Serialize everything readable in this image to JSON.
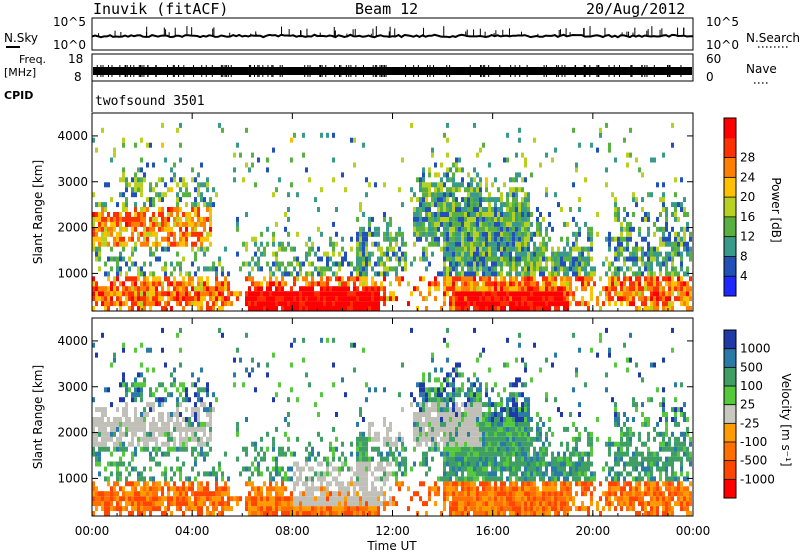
{
  "header": {
    "station": "Inuvik (fitACF)",
    "beam": "Beam 12",
    "date": "20/Aug/2012"
  },
  "status_panels": {
    "nsky_label": "N.Sky",
    "nsky_ticks": [
      "10^5",
      "10^0"
    ],
    "nsearch_label": "N.Search",
    "freq_label_top": "Freq.",
    "freq_label_unit": "[MHz]",
    "freq_ticks": [
      "18",
      "8"
    ],
    "nave_ticks": [
      "60",
      "0"
    ],
    "nave_label": "Nave",
    "cpid_label": "CPID",
    "cpid_value": "twofsound 3501"
  },
  "chart_data": [
    {
      "type": "heatmap",
      "name": "power",
      "ylabel": "Slant Range [km]",
      "xlabel": "",
      "y_ticks": [
        1000,
        2000,
        3000,
        4000
      ],
      "ylim": [
        180,
        4500
      ],
      "colorbar_label": "Power [dB]",
      "colorbar_ticks": [
        "4",
        "8",
        "12",
        "16",
        "20",
        "24",
        "28"
      ],
      "colorbar_range": [
        0,
        30
      ],
      "colors": [
        "#1e28ff",
        "#2050b8",
        "#3a9a8a",
        "#58b040",
        "#b8d020",
        "#ffc000",
        "#ff8000",
        "#ff3000",
        "#ff0000"
      ]
    },
    {
      "type": "heatmap",
      "name": "velocity",
      "ylabel": "Slant Range [km]",
      "xlabel": "Time UT",
      "x_ticks": [
        "00:00",
        "04:00",
        "08:00",
        "12:00",
        "16:00",
        "20:00",
        "00:00"
      ],
      "y_ticks": [
        1000,
        2000,
        3000,
        4000
      ],
      "ylim": [
        180,
        4500
      ],
      "colorbar_label": "Velocity [m s⁻¹]",
      "colorbar_ticks": [
        "1000",
        "500",
        "100",
        "25",
        "-25",
        "-100",
        "-500",
        "-1000"
      ],
      "ground_scatter_color": "#c0c0b8",
      "colors": [
        "#1f3aa8",
        "#2a7aa8",
        "#3e9e64",
        "#56c83c",
        "#c8c8c0",
        "#ff9a00",
        "#ff7000",
        "#ff4500",
        "#ff0000"
      ]
    }
  ]
}
